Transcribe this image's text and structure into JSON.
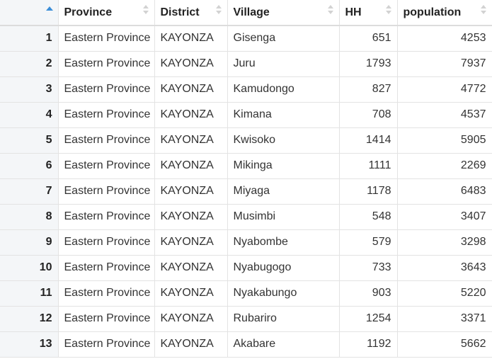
{
  "table": {
    "columns": [
      "Province",
      "District",
      "Village",
      "HH",
      "population"
    ],
    "sort": {
      "column": "index",
      "direction": "ascending"
    },
    "rows": [
      {
        "index": "1",
        "Province": "Eastern Province",
        "District": "KAYONZA",
        "Village": "Gisenga",
        "HH": "651",
        "population": "4253"
      },
      {
        "index": "2",
        "Province": "Eastern Province",
        "District": "KAYONZA",
        "Village": "Juru",
        "HH": "1793",
        "population": "7937"
      },
      {
        "index": "3",
        "Province": "Eastern Province",
        "District": "KAYONZA",
        "Village": "Kamudongo",
        "HH": "827",
        "population": "4772"
      },
      {
        "index": "4",
        "Province": "Eastern Province",
        "District": "KAYONZA",
        "Village": "Kimana",
        "HH": "708",
        "population": "4537"
      },
      {
        "index": "5",
        "Province": "Eastern Province",
        "District": "KAYONZA",
        "Village": "Kwisoko",
        "HH": "1414",
        "population": "5905"
      },
      {
        "index": "6",
        "Province": "Eastern Province",
        "District": "KAYONZA",
        "Village": "Mikinga",
        "HH": "1111",
        "population": "2269"
      },
      {
        "index": "7",
        "Province": "Eastern Province",
        "District": "KAYONZA",
        "Village": "Miyaga",
        "HH": "1178",
        "population": "6483"
      },
      {
        "index": "8",
        "Province": "Eastern Province",
        "District": "KAYONZA",
        "Village": "Musimbi",
        "HH": "548",
        "population": "3407"
      },
      {
        "index": "9",
        "Province": "Eastern Province",
        "District": "KAYONZA",
        "Village": "Nyabombe",
        "HH": "579",
        "population": "3298"
      },
      {
        "index": "10",
        "Province": "Eastern Province",
        "District": "KAYONZA",
        "Village": "Nyabugogo",
        "HH": "733",
        "population": "3643"
      },
      {
        "index": "11",
        "Province": "Eastern Province",
        "District": "KAYONZA",
        "Village": "Nyakabungo",
        "HH": "903",
        "population": "5220"
      },
      {
        "index": "12",
        "Province": "Eastern Province",
        "District": "KAYONZA",
        "Village": "Rubariro",
        "HH": "1254",
        "population": "3371"
      },
      {
        "index": "13",
        "Province": "Eastern Province",
        "District": "KAYONZA",
        "Village": "Akabare",
        "HH": "1192",
        "population": "5662"
      }
    ]
  },
  "colors": {
    "sort_active": "#3b8ed8",
    "sort_inactive": "#d2d2d2",
    "index_column_bg": "#f4f6f8",
    "grid_line": "#e3e3e3"
  },
  "icons": {
    "active_sort": "sort-ascending-icon",
    "inactive_sort": "sort-both-icon"
  }
}
